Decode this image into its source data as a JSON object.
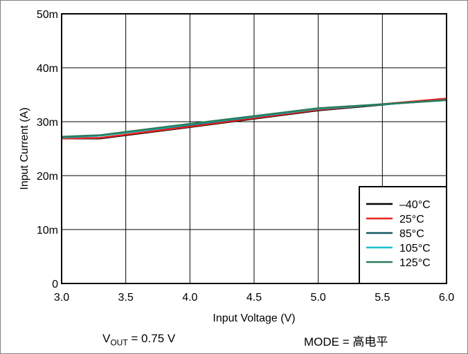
{
  "chart_data": {
    "type": "line",
    "xlabel": "Input Voltage (V)",
    "ylabel": "Input Current (A)",
    "xlim": [
      3.0,
      6.0
    ],
    "ylim": [
      0,
      50
    ],
    "x_ticks": [
      3.0,
      3.5,
      4.0,
      4.5,
      5.0,
      5.5,
      6.0
    ],
    "x_tick_labels": [
      "3.0",
      "3.5",
      "4.0",
      "4.5",
      "5.0",
      "5.5",
      "6.0"
    ],
    "y_ticks": [
      0,
      10,
      20,
      30,
      40,
      50
    ],
    "y_tick_labels": [
      "0",
      "10m",
      "20m",
      "30m",
      "40m",
      "50m"
    ],
    "grid": true,
    "legend_position": "bottom-right",
    "series": [
      {
        "name": "–40°C",
        "color": "#000000",
        "x": [
          3.0,
          3.3,
          4.0,
          5.0,
          6.0
        ],
        "y": [
          26.9,
          26.9,
          29.0,
          32.1,
          34.2
        ]
      },
      {
        "name": "25°C",
        "color": "#e8231f",
        "x": [
          3.0,
          3.3,
          4.0,
          5.0,
          6.0
        ],
        "y": [
          26.9,
          27.0,
          29.1,
          32.2,
          34.3
        ]
      },
      {
        "name": "85°C",
        "color": "#11575e",
        "x": [
          3.0,
          3.3,
          4.0,
          5.0,
          6.0
        ],
        "y": [
          27.1,
          27.4,
          29.4,
          32.4,
          34.0
        ]
      },
      {
        "name": "105°C",
        "color": "#19c2d2",
        "x": [
          3.0,
          3.3,
          4.0,
          5.0,
          6.0
        ],
        "y": [
          27.1,
          27.4,
          29.5,
          32.4,
          34.0
        ]
      },
      {
        "name": "125°C",
        "color": "#2a7a58",
        "x": [
          3.0,
          3.3,
          4.0,
          5.0,
          6.0
        ],
        "y": [
          27.2,
          27.5,
          29.6,
          32.5,
          34.0
        ]
      }
    ]
  },
  "footer": {
    "vout_prefix": "V",
    "vout_sub": "OUT",
    "vout_value": " = 0.75 V",
    "mode_text": "MODE = 高电平"
  }
}
